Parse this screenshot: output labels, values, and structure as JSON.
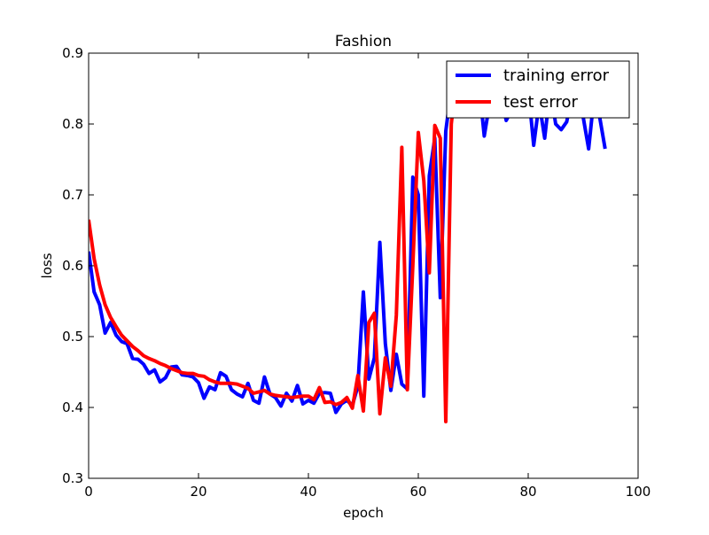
{
  "chart_data": {
    "type": "line",
    "title": "Fashion",
    "xlabel": "epoch",
    "ylabel": "loss",
    "xlim": [
      0,
      100
    ],
    "ylim": [
      0.3,
      0.9
    ],
    "xticks": [
      0,
      20,
      40,
      60,
      80,
      100
    ],
    "yticks": [
      0.3,
      0.4,
      0.5,
      0.6,
      0.7,
      0.8,
      0.9
    ],
    "xtick_labels": [
      "0",
      "20",
      "40",
      "60",
      "80",
      "100"
    ],
    "ytick_labels": [
      "0.3",
      "0.4",
      "0.5",
      "0.6",
      "0.7",
      "0.8",
      "0.9"
    ],
    "grid": false,
    "legend_position": "top-right",
    "series": [
      {
        "name": "training error",
        "color": "#0000ff",
        "x": [
          0,
          1,
          2,
          3,
          4,
          5,
          6,
          7,
          8,
          9,
          10,
          11,
          12,
          13,
          14,
          15,
          16,
          17,
          18,
          19,
          20,
          21,
          22,
          23,
          24,
          25,
          26,
          27,
          28,
          29,
          30,
          31,
          32,
          33,
          34,
          35,
          36,
          37,
          38,
          39,
          40,
          41,
          42,
          43,
          44,
          45,
          46,
          47,
          48,
          49,
          50,
          51,
          52,
          53,
          54,
          55,
          56,
          57,
          58,
          59,
          60,
          61,
          62,
          63,
          64,
          65,
          66,
          67,
          68,
          69,
          70,
          71,
          72,
          73,
          74,
          75,
          76,
          77,
          78,
          79,
          80,
          81,
          82,
          83,
          84,
          85,
          86,
          87,
          88,
          89,
          90,
          91,
          92,
          93,
          94
        ],
        "y": [
          0.62,
          0.563,
          0.545,
          0.505,
          0.52,
          0.502,
          0.493,
          0.49,
          0.469,
          0.468,
          0.461,
          0.448,
          0.453,
          0.436,
          0.442,
          0.457,
          0.458,
          0.446,
          0.445,
          0.443,
          0.435,
          0.413,
          0.429,
          0.425,
          0.449,
          0.444,
          0.425,
          0.419,
          0.415,
          0.434,
          0.41,
          0.406,
          0.443,
          0.419,
          0.414,
          0.402,
          0.42,
          0.409,
          0.431,
          0.405,
          0.41,
          0.406,
          0.42,
          0.421,
          0.42,
          0.393,
          0.405,
          0.41,
          0.403,
          0.43,
          0.563,
          0.44,
          0.47,
          0.633,
          0.49,
          0.424,
          0.475,
          0.433,
          0.426,
          0.725,
          0.7,
          0.416,
          0.727,
          0.78,
          0.555,
          0.79,
          0.85,
          0.88,
          0.86,
          0.84,
          0.87,
          0.86,
          0.783,
          0.83,
          0.87,
          0.84,
          0.805,
          0.82,
          0.87,
          0.84,
          0.85,
          0.77,
          0.83,
          0.78,
          0.85,
          0.8,
          0.792,
          0.803,
          0.84,
          0.83,
          0.81,
          0.765,
          0.84,
          0.81,
          0.765
        ]
      },
      {
        "name": "test error",
        "color": "#ff0000",
        "x": [
          0,
          1,
          2,
          3,
          4,
          5,
          6,
          7,
          8,
          9,
          10,
          11,
          12,
          13,
          14,
          15,
          16,
          17,
          18,
          19,
          20,
          21,
          22,
          23,
          24,
          25,
          26,
          27,
          28,
          29,
          30,
          31,
          32,
          33,
          34,
          35,
          36,
          37,
          38,
          39,
          40,
          41,
          42,
          43,
          44,
          45,
          46,
          47,
          48,
          49,
          50,
          51,
          52,
          53,
          54,
          55,
          56,
          57,
          58,
          59,
          60,
          61,
          62,
          63,
          64,
          65,
          66,
          67
        ],
        "y": [
          0.665,
          0.61,
          0.573,
          0.545,
          0.527,
          0.514,
          0.502,
          0.494,
          0.486,
          0.48,
          0.473,
          0.469,
          0.466,
          0.462,
          0.459,
          0.455,
          0.452,
          0.449,
          0.448,
          0.448,
          0.445,
          0.444,
          0.439,
          0.436,
          0.434,
          0.434,
          0.434,
          0.433,
          0.43,
          0.427,
          0.42,
          0.422,
          0.424,
          0.419,
          0.417,
          0.416,
          0.415,
          0.414,
          0.415,
          0.416,
          0.416,
          0.411,
          0.428,
          0.407,
          0.408,
          0.404,
          0.407,
          0.414,
          0.399,
          0.445,
          0.395,
          0.52,
          0.533,
          0.391,
          0.47,
          0.43,
          0.53,
          0.767,
          0.425,
          0.6,
          0.788,
          0.72,
          0.59,
          0.798,
          0.78,
          0.38,
          0.8,
          0.87
        ]
      }
    ]
  }
}
